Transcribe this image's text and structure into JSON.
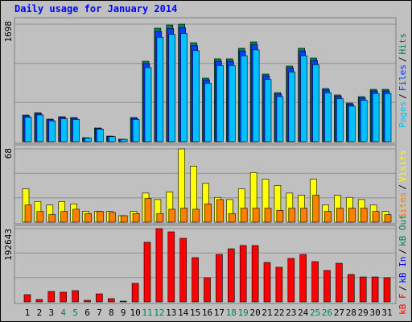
{
  "legend_separator": "/",
  "chart_data": [
    {
      "type": "bar",
      "title": "Daily usage for January 2014",
      "series": [
        {
          "name": "Hits",
          "color": "#00805c",
          "values": [
            384,
            419,
            326,
            361,
            349,
            58,
            198,
            81,
            35,
            349,
            1163,
            1640,
            1686,
            1698,
            1430,
            919,
            1198,
            1198,
            1349,
            1442,
            977,
            709,
            1093,
            1349,
            1209,
            768,
            675,
            558,
            651,
            756,
            756
          ]
        },
        {
          "name": "Files",
          "color": "#0040ff",
          "values": [
            372,
            406,
            316,
            350,
            338,
            56,
            192,
            78,
            34,
            338,
            1128,
            1591,
            1635,
            1647,
            1387,
            891,
            1162,
            1162,
            1308,
            1399,
            947,
            687,
            1060,
            1308,
            1172,
            745,
            654,
            541,
            631,
            733,
            733
          ]
        },
        {
          "name": "Pages",
          "color": "#00c0ff",
          "values": [
            353,
            385,
            300,
            332,
            321,
            53,
            182,
            74,
            32,
            321,
            1070,
            1509,
            1551,
            1562,
            1316,
            845,
            1102,
            1102,
            1241,
            1327,
            899,
            652,
            1006,
            1241,
            1112,
            706,
            621,
            513,
            599,
            696,
            696
          ]
        }
      ],
      "ylim": [
        0,
        1698
      ],
      "yticks": [
        1698
      ]
    },
    {
      "type": "bar",
      "series": [
        {
          "name": "Visits",
          "color": "#ffff00",
          "values": [
            31,
            19,
            16,
            19,
            17,
            10,
            10,
            10,
            6,
            10,
            27,
            21,
            28,
            68,
            52,
            36,
            23,
            21,
            31,
            46,
            40,
            34,
            27,
            25,
            40,
            16,
            25,
            23,
            21,
            16,
            10
          ]
        },
        {
          "name": "Sites",
          "color": "#ff8000",
          "values": [
            16,
            10,
            7,
            10,
            12,
            8,
            10,
            9,
            6,
            8,
            22,
            8,
            12,
            13,
            12,
            17,
            21,
            8,
            13,
            13,
            13,
            11,
            13,
            13,
            25,
            10,
            13,
            13,
            13,
            10,
            7
          ]
        }
      ],
      "ylim": [
        0,
        68
      ],
      "yticks": [
        68
      ]
    },
    {
      "type": "bar",
      "categories": [
        "1",
        "2",
        "3",
        "4",
        "5",
        "6",
        "7",
        "8",
        "9",
        "10",
        "11",
        "12",
        "13",
        "14",
        "15",
        "16",
        "17",
        "18",
        "19",
        "20",
        "21",
        "22",
        "23",
        "24",
        "25",
        "26",
        "27",
        "28",
        "29",
        "30",
        "31"
      ],
      "weekend_days": [
        3,
        4,
        10,
        11,
        17,
        18,
        24,
        25
      ],
      "weekend_color": "#00805c",
      "weekday_color": "#000000",
      "series": [
        {
          "name": "kB Out",
          "color": "#00805c",
          "values": [
            0,
            0,
            0,
            0,
            0,
            0,
            0,
            0,
            0,
            0,
            0,
            0,
            0,
            0,
            0,
            0,
            0,
            0,
            0,
            0,
            0,
            0,
            0,
            0,
            0,
            0,
            0,
            0,
            0,
            0,
            0
          ]
        },
        {
          "name": "kB In",
          "color": "#0000ff",
          "values": [
            0,
            0,
            0,
            0,
            0,
            0,
            0,
            0,
            0,
            0,
            0,
            0,
            0,
            0,
            0,
            0,
            0,
            0,
            0,
            0,
            0,
            0,
            0,
            0,
            0,
            0,
            0,
            0,
            0,
            0,
            0
          ]
        },
        {
          "name": "kB F",
          "color": "#ff0000",
          "values": [
            19000,
            6350,
            27500,
            25400,
            29600,
            4200,
            21000,
            8500,
            2100,
            48700,
            156700,
            192643,
            184200,
            167200,
            116400,
            63500,
            124800,
            139600,
            148200,
            148200,
            103700,
            91000,
            114300,
            124800,
            105900,
            82600,
            101600,
            72000,
            65600,
            65600,
            63500
          ]
        }
      ],
      "ylim": [
        0,
        192643
      ],
      "yticks": [
        192643
      ]
    }
  ]
}
